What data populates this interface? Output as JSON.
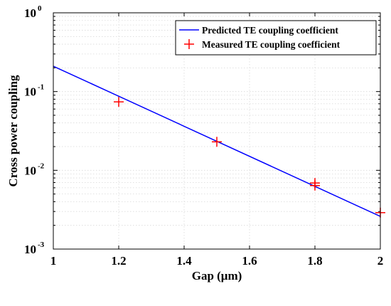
{
  "chart_data": {
    "type": "line",
    "xlabel": "Gap (μm)",
    "ylabel": "Cross power coupling",
    "xlim": [
      1,
      2
    ],
    "ylim": [
      0.001,
      1
    ],
    "yscale": "log",
    "x_ticks": [
      1,
      1.2,
      1.4,
      1.6,
      1.8,
      2
    ],
    "x_tick_labels": [
      "1",
      "1.2",
      "1.4",
      "1.6",
      "1.8",
      "2"
    ],
    "y_ticks": [
      0.001,
      0.01,
      0.1,
      1
    ],
    "y_tick_labels": [
      {
        "base": "10",
        "exp": "-3"
      },
      {
        "base": "10",
        "exp": "-2"
      },
      {
        "base": "10",
        "exp": "-1"
      },
      {
        "base": "10",
        "exp": "0"
      }
    ],
    "grid": true,
    "legend": "top-right",
    "series": [
      {
        "name": "Predicted TE coupling coefficient",
        "kind": "line",
        "color": "#0000ff",
        "x": [
          1,
          2
        ],
        "y": [
          0.21,
          0.0026
        ]
      },
      {
        "name": "Measured TE coupling coefficient",
        "kind": "marker",
        "marker": "plus",
        "color": "#ff0000",
        "x": [
          1.2,
          1.5,
          1.8,
          1.8,
          2.0
        ],
        "y": [
          0.074,
          0.023,
          0.0069,
          0.0064,
          0.0029
        ]
      }
    ]
  }
}
